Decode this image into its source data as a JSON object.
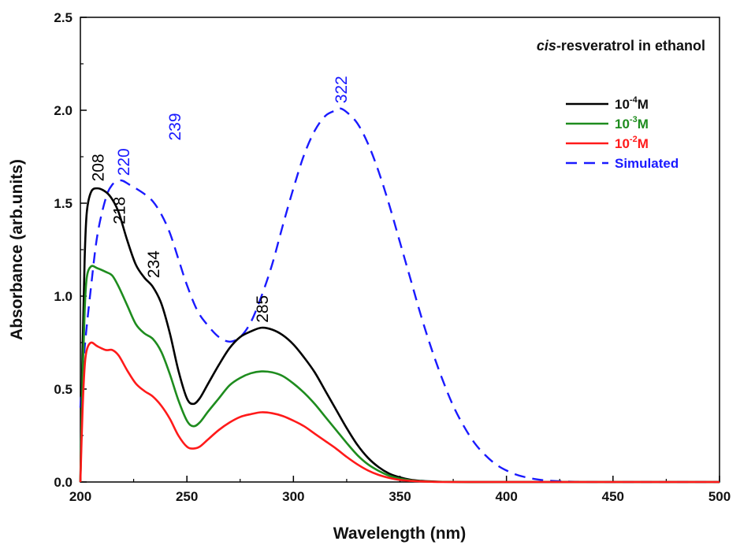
{
  "chart_data": {
    "type": "line",
    "title_italic": "cis",
    "title_rest": "-resveratrol in ethanol",
    "xlabel": "Wavelength (nm)",
    "ylabel": "Absorbance (arb.units)",
    "xlim": [
      200,
      500
    ],
    "ylim": [
      0,
      2.5
    ],
    "xticks": [
      "200",
      "250",
      "300",
      "350",
      "400",
      "450",
      "500"
    ],
    "yticks": [
      "0.0",
      "0.5",
      "1.0",
      "1.5",
      "2.0",
      "2.5"
    ],
    "grid": false,
    "legend_position": "top-right",
    "series": [
      {
        "legend_base": "10",
        "legend_exp": "-4",
        "legend_unit": "M",
        "color": "#000000",
        "dash": false,
        "x": [
          200,
          201,
          202,
          203,
          205,
          208,
          212,
          215,
          218,
          222,
          226,
          230,
          234,
          238,
          242,
          246,
          250,
          253,
          256,
          260,
          265,
          270,
          275,
          280,
          285,
          290,
          295,
          300,
          305,
          310,
          315,
          320,
          325,
          330,
          335,
          340,
          345,
          350,
          355,
          360,
          365,
          370,
          380,
          400,
          450,
          500
        ],
        "y": [
          0.0,
          0.7,
          1.2,
          1.45,
          1.56,
          1.58,
          1.56,
          1.52,
          1.45,
          1.3,
          1.17,
          1.1,
          1.05,
          0.96,
          0.8,
          0.6,
          0.45,
          0.42,
          0.45,
          0.53,
          0.63,
          0.72,
          0.78,
          0.81,
          0.83,
          0.82,
          0.79,
          0.74,
          0.67,
          0.59,
          0.49,
          0.39,
          0.29,
          0.2,
          0.13,
          0.08,
          0.045,
          0.025,
          0.012,
          0.006,
          0.003,
          0.001,
          0.0,
          0.0,
          0.0,
          0.0
        ]
      },
      {
        "legend_base": "10",
        "legend_exp": "-3",
        "legend_unit": "M",
        "color": "#1e8c1e",
        "dash": false,
        "x": [
          200,
          201,
          202,
          203,
          205,
          208,
          212,
          215,
          218,
          222,
          226,
          230,
          234,
          238,
          242,
          246,
          250,
          253,
          256,
          260,
          265,
          270,
          275,
          280,
          285,
          290,
          295,
          300,
          305,
          310,
          315,
          320,
          325,
          330,
          335,
          340,
          345,
          350,
          355,
          360,
          365,
          370,
          380,
          400,
          450,
          500
        ],
        "y": [
          0.0,
          0.55,
          0.92,
          1.1,
          1.16,
          1.15,
          1.13,
          1.11,
          1.05,
          0.95,
          0.85,
          0.8,
          0.77,
          0.7,
          0.58,
          0.44,
          0.33,
          0.3,
          0.32,
          0.38,
          0.45,
          0.52,
          0.56,
          0.585,
          0.595,
          0.59,
          0.57,
          0.53,
          0.48,
          0.42,
          0.35,
          0.28,
          0.21,
          0.145,
          0.095,
          0.06,
          0.034,
          0.018,
          0.009,
          0.004,
          0.002,
          0.001,
          0.0,
          0.0,
          0.0,
          0.0
        ]
      },
      {
        "legend_base": "10",
        "legend_exp": "-2",
        "legend_unit": "M",
        "color": "#ff1a1a",
        "dash": false,
        "x": [
          200,
          201,
          202,
          203,
          205,
          208,
          212,
          215,
          218,
          222,
          226,
          230,
          234,
          238,
          242,
          246,
          250,
          253,
          256,
          260,
          265,
          270,
          275,
          280,
          285,
          290,
          295,
          300,
          305,
          310,
          315,
          320,
          325,
          330,
          335,
          340,
          345,
          350,
          355,
          360,
          365,
          370,
          380,
          400,
          450,
          500
        ],
        "y": [
          0.0,
          0.38,
          0.62,
          0.71,
          0.75,
          0.73,
          0.71,
          0.71,
          0.68,
          0.6,
          0.53,
          0.49,
          0.46,
          0.41,
          0.34,
          0.25,
          0.19,
          0.18,
          0.19,
          0.23,
          0.28,
          0.32,
          0.35,
          0.365,
          0.375,
          0.37,
          0.355,
          0.33,
          0.3,
          0.26,
          0.22,
          0.18,
          0.135,
          0.095,
          0.062,
          0.038,
          0.022,
          0.011,
          0.006,
          0.003,
          0.001,
          0.0,
          0.0,
          0.0,
          0.0,
          0.0
        ]
      },
      {
        "legend_label": "Simulated",
        "color": "#1a1aff",
        "dash": true,
        "x": [
          200,
          202,
          205,
          208,
          212,
          215,
          218,
          220,
          223,
          226,
          230,
          234,
          238,
          242,
          246,
          250,
          255,
          260,
          265,
          270,
          275,
          280,
          285,
          290,
          295,
          300,
          305,
          310,
          315,
          320,
          322,
          325,
          330,
          335,
          340,
          345,
          350,
          355,
          360,
          365,
          370,
          375,
          380,
          385,
          390,
          395,
          400,
          405,
          410,
          415,
          420,
          425,
          430,
          440,
          450,
          475,
          500
        ],
        "y": [
          0.4,
          0.72,
          1.05,
          1.33,
          1.53,
          1.6,
          1.62,
          1.62,
          1.6,
          1.58,
          1.55,
          1.51,
          1.44,
          1.34,
          1.2,
          1.06,
          0.92,
          0.84,
          0.78,
          0.755,
          0.78,
          0.86,
          1.0,
          1.17,
          1.38,
          1.58,
          1.76,
          1.89,
          1.97,
          2.0,
          2.01,
          1.99,
          1.93,
          1.82,
          1.67,
          1.49,
          1.29,
          1.09,
          0.89,
          0.71,
          0.55,
          0.41,
          0.3,
          0.21,
          0.145,
          0.095,
          0.062,
          0.038,
          0.023,
          0.013,
          0.007,
          0.004,
          0.002,
          0.0,
          0.0,
          0.0,
          0.0
        ]
      }
    ],
    "annotations": [
      {
        "text": "208",
        "x": 208,
        "y": 1.6,
        "color": "#000000",
        "rotate": -90
      },
      {
        "text": "218",
        "x": 218,
        "y": 1.37,
        "color": "#000000",
        "rotate": -90
      },
      {
        "text": "234",
        "x": 234,
        "y": 1.08,
        "color": "#000000",
        "rotate": -90
      },
      {
        "text": "285",
        "x": 285,
        "y": 0.84,
        "color": "#000000",
        "rotate": -90
      },
      {
        "text": "220",
        "x": 220,
        "y": 1.63,
        "color": "#1a1aff",
        "rotate": -90
      },
      {
        "text": "239",
        "x": 244,
        "y": 1.82,
        "color": "#1a1aff",
        "rotate": -90
      },
      {
        "text": "322",
        "x": 322,
        "y": 2.02,
        "color": "#1a1aff",
        "rotate": -90
      }
    ]
  }
}
